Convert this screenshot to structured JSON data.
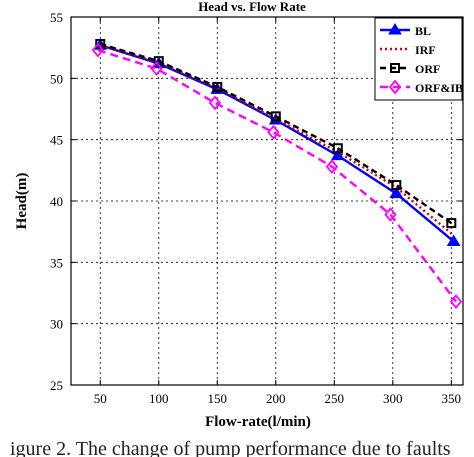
{
  "caption": "igure 2. The change of pump performance due to faults",
  "chart_data": {
    "type": "line",
    "title": "Head vs. Flow Rate",
    "xlabel": "Flow-rate(l/min)",
    "ylabel": "Head(m)",
    "xlim": [
      25,
      360
    ],
    "ylim": [
      25,
      55
    ],
    "xticks": [
      50,
      100,
      150,
      200,
      250,
      300,
      350
    ],
    "yticks": [
      25,
      30,
      35,
      40,
      45,
      50,
      55
    ],
    "grid": true,
    "legend_position": "top-right",
    "series": [
      {
        "name": "BL",
        "color": "#0000ff",
        "dash": "",
        "marker": "triangle",
        "x": [
          50,
          100,
          150,
          200,
          253,
          303,
          352
        ],
        "y": [
          52.7,
          51.2,
          49.1,
          46.6,
          43.7,
          40.6,
          36.7
        ]
      },
      {
        "name": "IRF",
        "color": "#d00000",
        "dash": "2,3",
        "marker": "none",
        "x": [
          50,
          100,
          150,
          200,
          253,
          303,
          352
        ],
        "y": [
          52.7,
          51.3,
          49.2,
          46.7,
          44.0,
          41.1,
          37.2
        ]
      },
      {
        "name": "ORF",
        "color": "#000000",
        "dash": "6,4",
        "marker": "square",
        "x": [
          50,
          100,
          150,
          200,
          253,
          303,
          350
        ],
        "y": [
          52.8,
          51.4,
          49.3,
          46.9,
          44.3,
          41.3,
          38.2
        ]
      },
      {
        "name": "ORF&IB",
        "color": "#ff00ff",
        "dash": "8,5",
        "marker": "diamond",
        "x": [
          48,
          98,
          148,
          198,
          248,
          298,
          354
        ],
        "y": [
          52.3,
          50.8,
          48.0,
          45.6,
          42.8,
          38.9,
          31.8
        ]
      }
    ]
  }
}
